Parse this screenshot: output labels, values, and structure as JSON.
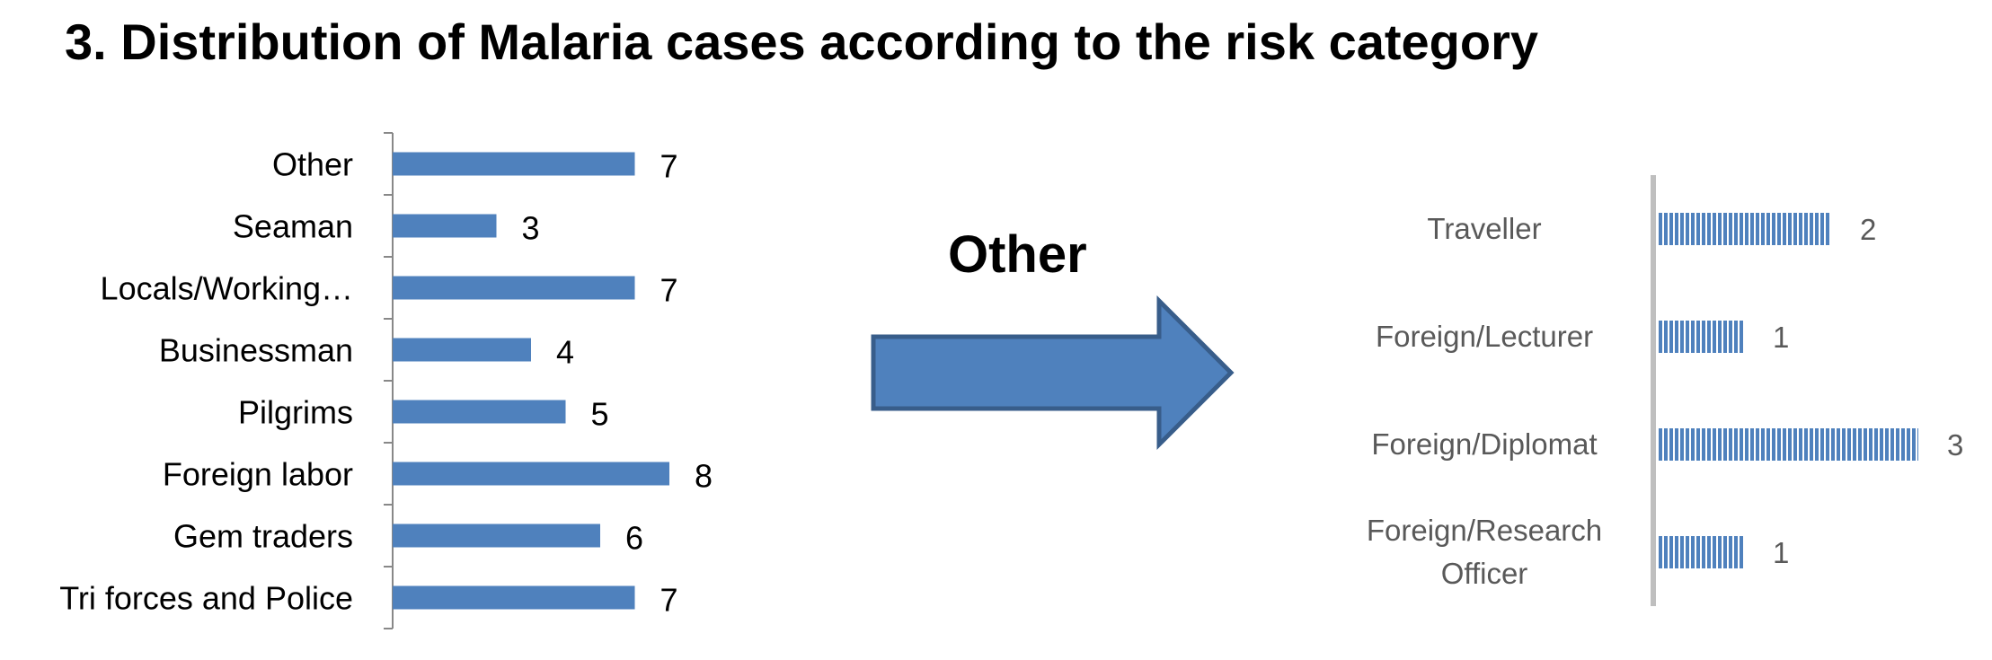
{
  "title": "3. Distribution of Malaria cases according to the risk category",
  "arrow_label": "Other",
  "colors": {
    "bar_fill": "#4f81bd",
    "arrow_fill": "#4f81bd",
    "arrow_stroke": "#385d8a",
    "axis_left": "#888888",
    "axis_right": "#bfbfbf",
    "right_label_color": "#595959"
  },
  "chart_data": [
    {
      "type": "bar",
      "orientation": "horizontal",
      "categories": [
        "Other",
        "Seaman",
        "Locals/Working…",
        "Businessman",
        "Pilgrims",
        "Foreign labor",
        "Gem traders",
        "Tri forces and Police"
      ],
      "values": [
        7,
        3,
        7,
        4,
        5,
        8,
        6,
        7
      ],
      "data_labels": true,
      "grid": false,
      "xlim": [
        0,
        8
      ]
    },
    {
      "type": "bar",
      "orientation": "horizontal",
      "categories": [
        "Traveller",
        "Foreign/Lecturer",
        "Foreign/Diplomat",
        "Foreign/Research Officer"
      ],
      "category_lines": [
        [
          "Traveller"
        ],
        [
          "Foreign/Lecturer"
        ],
        [
          "Foreign/Diplomat"
        ],
        [
          "Foreign/Research",
          "Officer"
        ]
      ],
      "values": [
        2,
        1,
        3,
        1
      ],
      "data_labels": true,
      "grid": false,
      "xlim": [
        0,
        3
      ],
      "pattern": "vertical-stripes"
    }
  ]
}
